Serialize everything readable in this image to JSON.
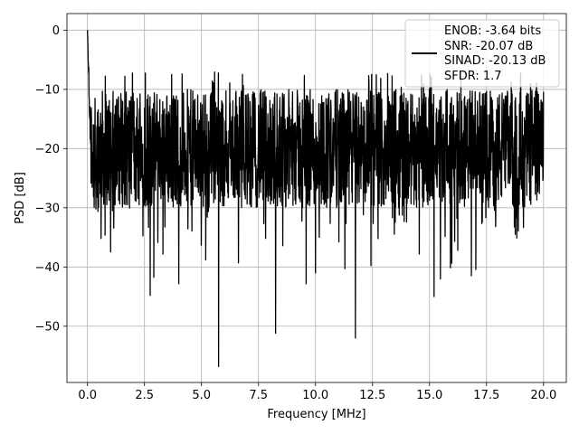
{
  "chart_data": {
    "type": "line",
    "title": "",
    "xlabel": "Frequency [MHz]",
    "ylabel": "PSD [dB]",
    "xlim": [
      -0.9,
      21.0
    ],
    "ylim": [
      -59.5,
      2.8
    ],
    "xticks": [
      0.0,
      2.5,
      5.0,
      7.5,
      10.0,
      12.5,
      15.0,
      17.5,
      20.0
    ],
    "xtick_labels": [
      "0.0",
      "2.5",
      "5.0",
      "7.5",
      "10.0",
      "12.5",
      "15.0",
      "17.5",
      "20.0"
    ],
    "yticks": [
      0,
      -10,
      -20,
      -30,
      -40,
      -50
    ],
    "ytick_labels": [
      "0",
      "−10",
      "−20",
      "−30",
      "−40",
      "−50"
    ],
    "grid": true,
    "legend_position": "top-right",
    "legend_entries": [
      "ENOB: -3.64 bits",
      "SNR: -20.07 dB",
      "SINAD: -20.13 dB",
      "SFDR: 1.7"
    ],
    "series": [
      {
        "color": "#000000",
        "x_range": [
          0.0,
          20.0
        ],
        "noise_floor_db": -20,
        "typical_range_db": [
          -32,
          -10
        ],
        "sample_count": 2049,
        "x": [
          0.0,
          0.02,
          0.05,
          0.1,
          0.15,
          0.2,
          0.25,
          0.3,
          0.4,
          0.5,
          0.6,
          0.7,
          0.8,
          1.0,
          1.05,
          1.1,
          1.3,
          1.5,
          1.7,
          1.8,
          2.0,
          2.2,
          2.5,
          2.75,
          3.0,
          3.3,
          3.6,
          3.8,
          4.0,
          4.2,
          4.5,
          4.8,
          5.0,
          5.2,
          5.5,
          5.75,
          6.0,
          6.2,
          6.5,
          6.8,
          7.0,
          7.3,
          7.5,
          7.8,
          8.0,
          8.25,
          8.5,
          8.8,
          9.0,
          9.3,
          9.5,
          9.7,
          10.0,
          10.3,
          10.5,
          10.8,
          11.0,
          11.3,
          11.5,
          11.75,
          12.0,
          12.2,
          12.5,
          12.8,
          13.0,
          13.3,
          13.5,
          13.8,
          14.0,
          14.3,
          14.5,
          14.8,
          15.0,
          15.2,
          15.5,
          15.8,
          16.0,
          16.3,
          16.5,
          16.8,
          17.0,
          17.3,
          17.5,
          17.8,
          18.0,
          18.3,
          18.5,
          18.8,
          19.0,
          19.3,
          19.5,
          19.8,
          20.0
        ],
        "y": [
          0.0,
          -5.0,
          -12.0,
          -18.0,
          -24.0,
          -36.0,
          -14.0,
          -22.0,
          -33.0,
          -17.0,
          -29.0,
          -21.0,
          -40.0,
          -15.0,
          -26.0,
          -20.0,
          -23.0,
          -12.0,
          -31.0,
          -19.0,
          -25.0,
          -14.0,
          -30.0,
          -44.8,
          -18.0,
          -25.0,
          -21.0,
          -13.0,
          -41.0,
          -27.0,
          -11.0,
          -33.0,
          -20.0,
          -17.0,
          -28.0,
          -56.8,
          -20.0,
          -12.0,
          -29.0,
          -8.0,
          -22.0,
          -33.0,
          -15.0,
          -26.0,
          -18.0,
          -51.2,
          -21.0,
          -30.0,
          -14.0,
          -24.0,
          -12.0,
          -27.0,
          -41.0,
          -19.0,
          -25.0,
          -16.0,
          -33.0,
          -22.0,
          -13.0,
          -52.0,
          -21.0,
          -30.0,
          -18.0,
          -11.0,
          -28.0,
          -36.0,
          -19.0,
          -24.0,
          -14.0,
          -40.0,
          -22.0,
          -30.0,
          -17.0,
          -45.0,
          -20.0,
          -12.0,
          -27.0,
          -38.0,
          -15.0,
          -23.0,
          -33.0,
          -12.0,
          -25.0,
          -40.0,
          -20.0,
          -44.0,
          -17.0,
          -30.0,
          -22.0,
          -36.0,
          -15.0,
          -25.0,
          -21.0
        ],
        "notable_points": [
          {
            "x": 0.0,
            "y": 0.0
          },
          {
            "x": 2.75,
            "y": -44.8
          },
          {
            "x": 5.75,
            "y": -56.8
          },
          {
            "x": 8.25,
            "y": -51.2
          },
          {
            "x": 10.0,
            "y": -41.0
          },
          {
            "x": 11.75,
            "y": -52.0
          },
          {
            "x": 15.2,
            "y": -45.0
          }
        ]
      }
    ]
  }
}
